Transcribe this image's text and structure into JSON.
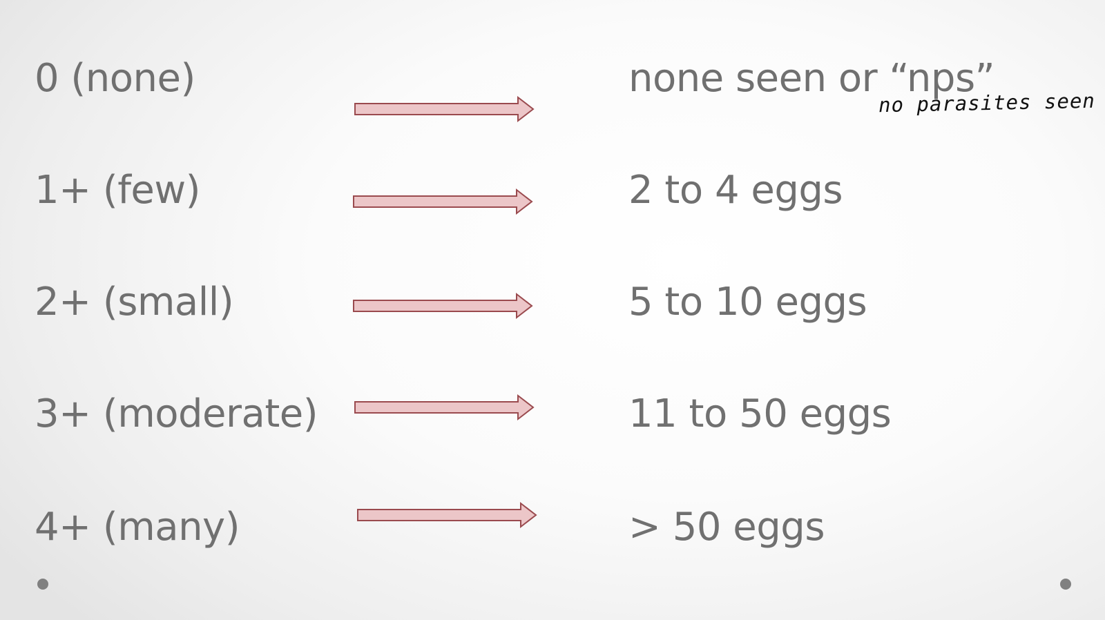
{
  "rows": [
    {
      "scale": "0 (none)",
      "description": "none seen or “nps”"
    },
    {
      "scale": "1+ (few)",
      "description": "2 to 4 eggs"
    },
    {
      "scale": "2+ (small)",
      "description": "5 to 10 eggs"
    },
    {
      "scale": "3+ (moderate)",
      "description": "11 to 50 eggs"
    },
    {
      "scale": "4+ (many)",
      "description": "> 50 eggs"
    }
  ],
  "annotation": "no parasites seen",
  "colors": {
    "text": "#707070",
    "arrow_fill": "#ecc6c8",
    "arrow_stroke": "#9a4a4e",
    "bullet": "#808080"
  }
}
